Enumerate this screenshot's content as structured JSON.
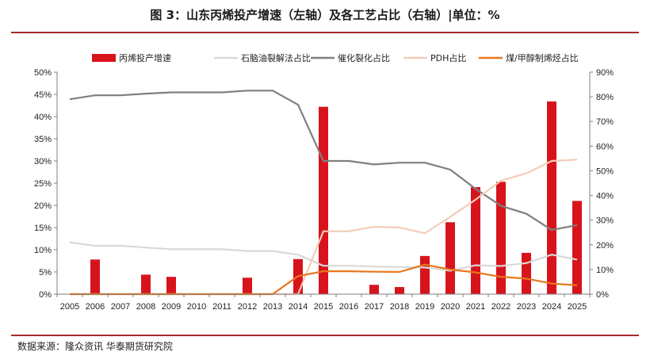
{
  "title": "图 3：山东丙烯投产增速（左轴）及各工艺占比（右轴）|单位：%",
  "source": "数据来源：隆众资讯  华泰期货研究院",
  "chart_data": {
    "type": "bar",
    "categories": [
      "2005",
      "2006",
      "2007",
      "2008",
      "2009",
      "2010",
      "2011",
      "2012",
      "2013",
      "2014",
      "2015",
      "2016",
      "2017",
      "2018",
      "2019",
      "2020",
      "2021",
      "2022",
      "2023",
      "2024",
      "2025"
    ],
    "y_left": {
      "ylim": [
        0,
        50
      ],
      "ticks": [
        "0%",
        "5%",
        "10%",
        "15%",
        "20%",
        "25%",
        "30%",
        "35%",
        "40%",
        "45%",
        "50%"
      ]
    },
    "y_right": {
      "ylim": [
        0,
        90
      ],
      "ticks": [
        "0%",
        "10%",
        "20%",
        "30%",
        "40%",
        "50%",
        "60%",
        "70%",
        "80%",
        "90%"
      ]
    },
    "grid": false,
    "legend_position": "top",
    "series": [
      {
        "name": "丙烯投产增速",
        "type": "bar",
        "axis": "left",
        "color": "#d7141c",
        "values": [
          0,
          7.8,
          0,
          4.4,
          3.9,
          0,
          0,
          3.7,
          0,
          7.9,
          42.2,
          0,
          2.1,
          1.6,
          8.6,
          16.2,
          24.1,
          25.3,
          9.3,
          43.4,
          21.0
        ]
      },
      {
        "name": "石脑油裂解法占比",
        "type": "line",
        "axis": "right",
        "color": "#d9d9d9",
        "values": [
          21,
          19.6,
          19.6,
          18.9,
          18.2,
          18.2,
          18.2,
          17.5,
          17.5,
          16,
          11.5,
          11.5,
          11.2,
          11,
          10.8,
          9.5,
          11.7,
          11.4,
          12.6,
          16,
          14
        ]
      },
      {
        "name": "催化裂化占比",
        "type": "line",
        "axis": "right",
        "color": "#7f7f7f",
        "values": [
          79,
          80.6,
          80.6,
          81.3,
          81.8,
          81.8,
          81.8,
          82.5,
          82.5,
          76.8,
          54,
          54,
          52.6,
          53.3,
          53.3,
          50.5,
          42.7,
          35.8,
          32.6,
          26,
          28
        ]
      },
      {
        "name": "PDH占比",
        "type": "line",
        "axis": "right",
        "color": "#f4ccb8",
        "values": [
          0,
          0,
          0,
          0,
          0,
          0,
          0,
          0,
          0,
          0,
          25.5,
          25.5,
          27.3,
          27,
          24.7,
          31.4,
          38.3,
          46,
          49,
          54,
          54.5
        ]
      },
      {
        "name": "煤/甲醇制烯烃占比",
        "type": "line",
        "axis": "right",
        "color": "#e8771e",
        "values": [
          0,
          0,
          0,
          0,
          0,
          0,
          0,
          0,
          0,
          7.3,
          9.3,
          9.3,
          9.1,
          9,
          12,
          10,
          8.8,
          7,
          6.3,
          4.3,
          3.6
        ]
      }
    ]
  }
}
